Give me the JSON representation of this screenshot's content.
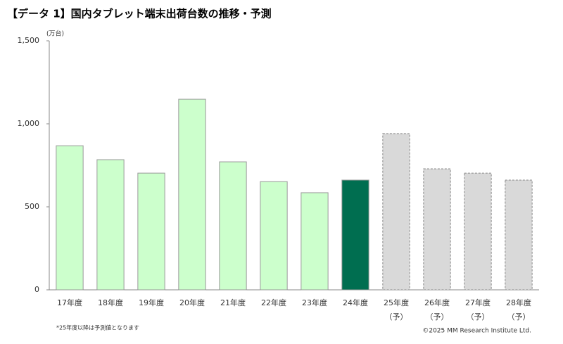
{
  "chart_data": {
    "type": "bar",
    "title": "【データ 1】国内タブレット端末出荷台数の推移・予測",
    "y_unit": "(万台)",
    "categories": [
      "17年度",
      "18年度",
      "19年度",
      "20年度",
      "21年度",
      "22年度",
      "23年度",
      "24年度",
      "25年度",
      "26年度",
      "27年度",
      "28年度"
    ],
    "sublabels": [
      null,
      null,
      null,
      null,
      null,
      null,
      null,
      null,
      "（予）",
      "（予）",
      "（予）",
      "（予）"
    ],
    "values": [
      868,
      784,
      703,
      1148,
      771,
      652,
      585,
      661,
      941,
      729,
      703,
      661
    ],
    "colors": [
      "#ccffcc",
      "#ccffcc",
      "#ccffcc",
      "#ccffcc",
      "#ccffcc",
      "#ccffcc",
      "#ccffcc",
      "#006e50",
      "#d9d9d9",
      "#d9d9d9",
      "#d9d9d9",
      "#d9d9d9"
    ],
    "dashed": [
      false,
      false,
      false,
      false,
      false,
      false,
      false,
      false,
      true,
      true,
      true,
      true
    ],
    "ylim": [
      0,
      1500
    ],
    "yticks": [
      0,
      500,
      {
        "value": 1000,
        "label": "1,000"
      },
      {
        "value": 1500,
        "label": "1,500"
      }
    ],
    "grid": false,
    "footnote": "*25年度以降は予測値となります",
    "copyright": "©2025  MM Research Institute Ltd."
  }
}
